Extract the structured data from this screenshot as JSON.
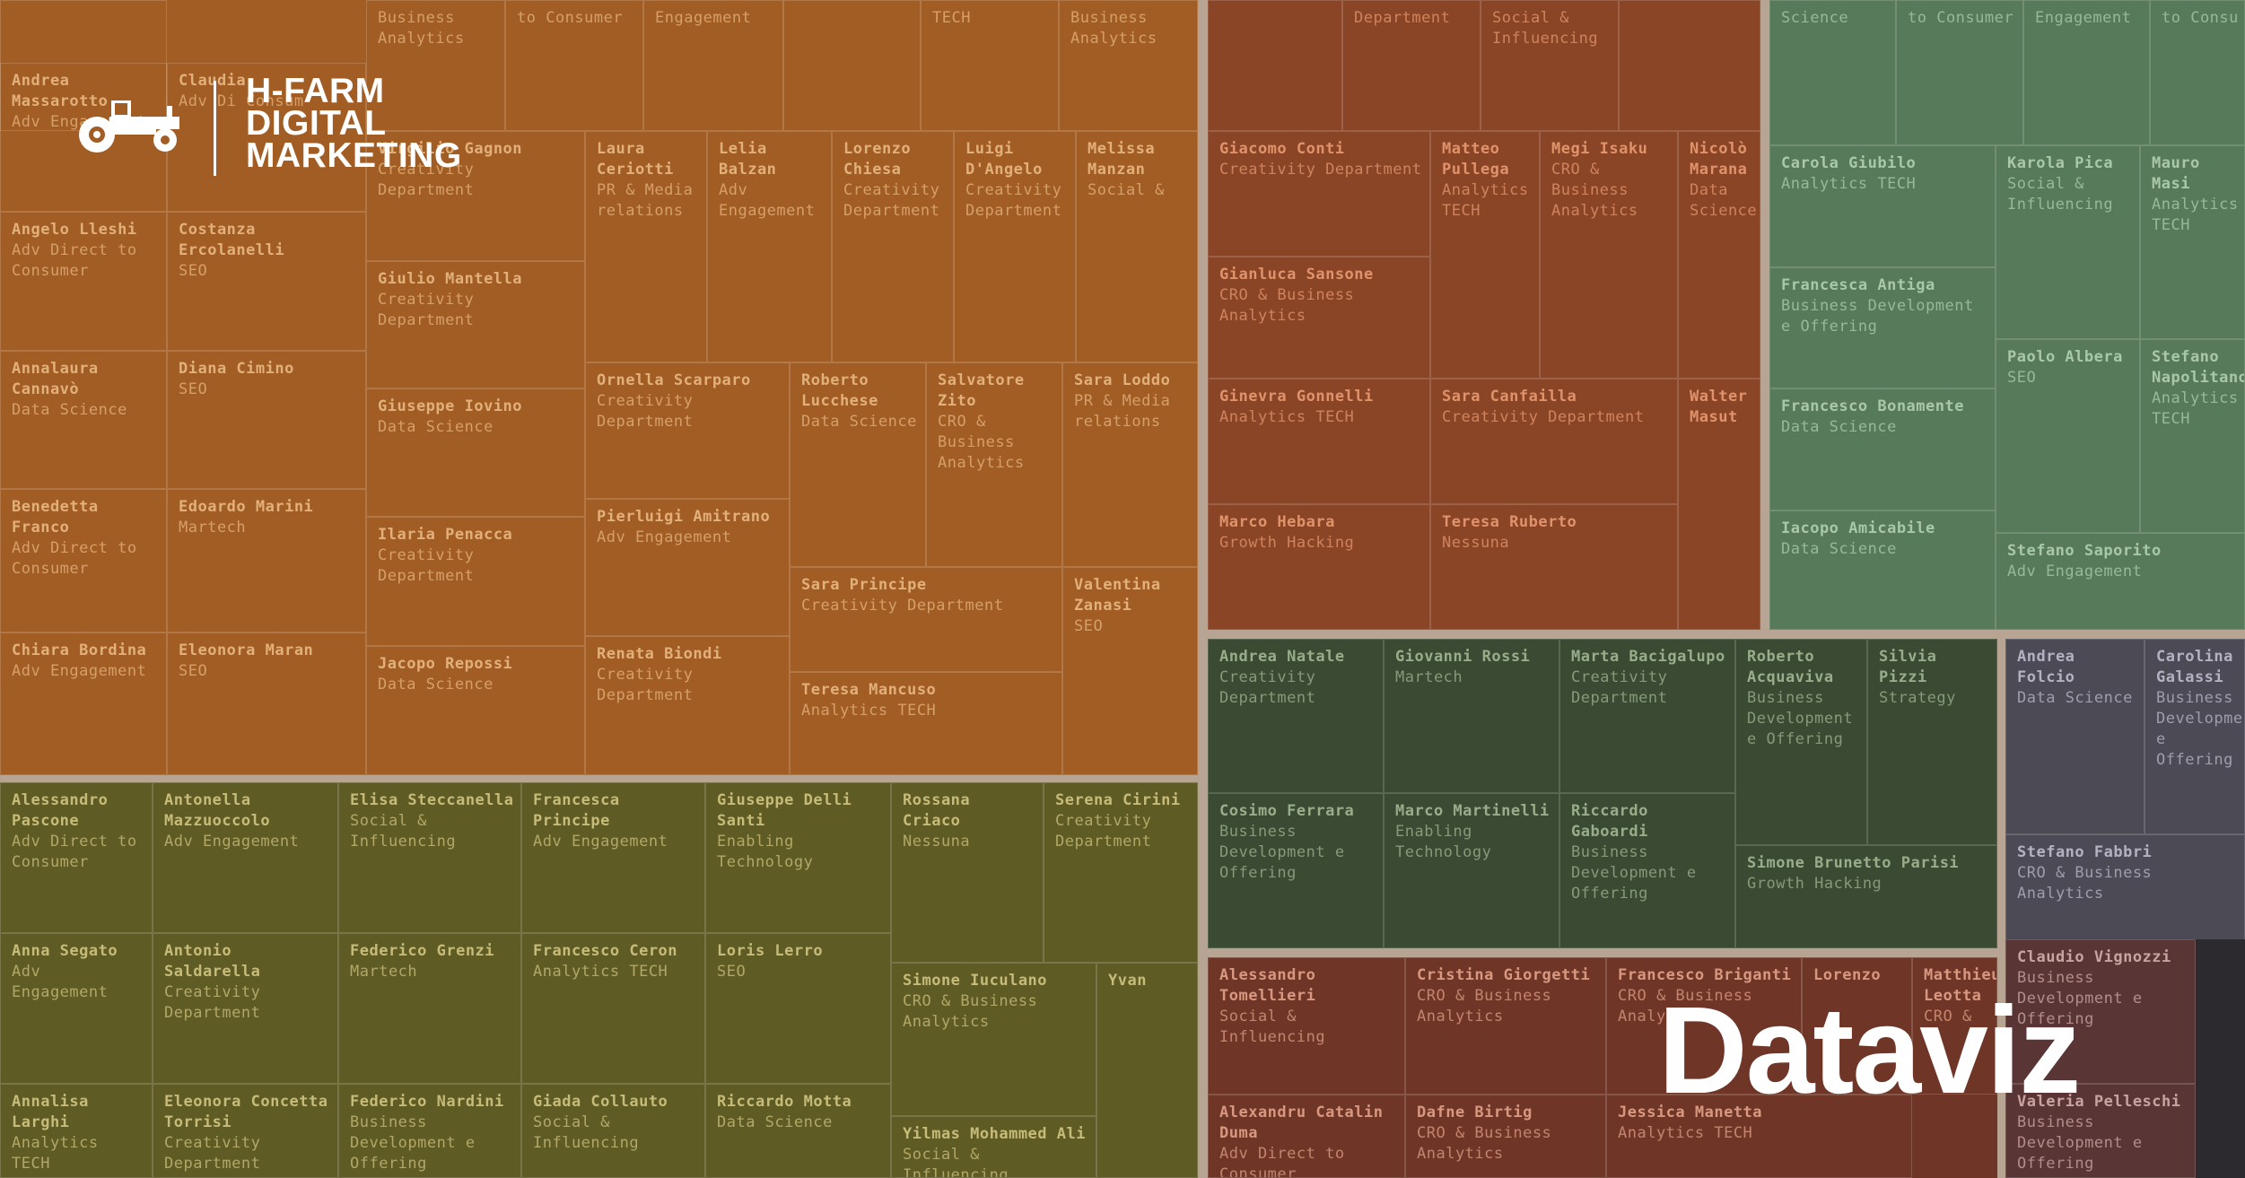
{
  "logo": {
    "line1": "H-FARM",
    "line2": "DIGITAL",
    "line3": "MARKETING"
  },
  "headline": "Dataviz",
  "colors": {
    "orange": "#a25d24",
    "olive": "#5f5b25",
    "rust": "#8a4527",
    "green": "#577a5a",
    "darkgreen": "#3a4a33",
    "maroon": "#6f3627",
    "slate": "#4c4a55",
    "darkred": "#5a3535",
    "divider": "#b8a492"
  },
  "chart_data": {
    "type": "treemap",
    "groups": [
      {
        "id": "orange",
        "color": "orange",
        "ink": "#e2b07a",
        "cells": [
          {
            "name": "",
            "dept": ""
          },
          {
            "name": "",
            "dept": "Business Analytics"
          },
          {
            "name": "",
            "dept": "to Consumer"
          },
          {
            "name": "",
            "dept": "Engagement"
          },
          {
            "name": "",
            "dept": ""
          },
          {
            "name": "",
            "dept": "TECH"
          },
          {
            "name": "",
            "dept": "Business Analytics"
          },
          {
            "name": "Andrea Massarotto",
            "dept": "Adv Engagement"
          },
          {
            "name": "Claudia",
            "dept": "Adv Di Consum"
          },
          {
            "name": "Angelo Lleshi",
            "dept": "Adv Direct to Consumer"
          },
          {
            "name": "Costanza Ercolanelli",
            "dept": "SEO"
          },
          {
            "name": "Annalaura Cannavò",
            "dept": "Data Science"
          },
          {
            "name": "Diana Cimino",
            "dept": "SEO"
          },
          {
            "name": "Benedetta Franco",
            "dept": "Adv Direct to Consumer"
          },
          {
            "name": "Edoardo Marini",
            "dept": "Martech"
          },
          {
            "name": "Chiara Bordina",
            "dept": "Adv Engagement"
          },
          {
            "name": "Eleonora Maran",
            "dept": "SEO"
          },
          {
            "name": "Virgilio Gagnon",
            "dept": "Creativity Department"
          },
          {
            "name": "Giulio Mantella",
            "dept": "Creativity Department"
          },
          {
            "name": "Giuseppe Iovino",
            "dept": "Data Science"
          },
          {
            "name": "Ilaria Penacca",
            "dept": "Creativity Department"
          },
          {
            "name": "Jacopo Repossi",
            "dept": "Data Science"
          },
          {
            "name": "Laura Ceriotti",
            "dept": "PR & Media relations"
          },
          {
            "name": "Lelia Balzan",
            "dept": "Adv Engagement"
          },
          {
            "name": "Lorenzo Chiesa",
            "dept": "Creativity Department"
          },
          {
            "name": "Luigi D'Angelo",
            "dept": "Creativity Department"
          },
          {
            "name": "Melissa Manzan",
            "dept": "Social &"
          },
          {
            "name": "Ornella Scarparo",
            "dept": "Creativity Department"
          },
          {
            "name": "Roberto Lucchese",
            "dept": "Data Science"
          },
          {
            "name": "Salvatore Zito",
            "dept": "CRO & Business Analytics"
          },
          {
            "name": "Sara Loddo",
            "dept": "PR & Media relations"
          },
          {
            "name": "Pierluigi Amitrano",
            "dept": "Adv Engagement"
          },
          {
            "name": "Renata Biondi",
            "dept": "Creativity Department"
          },
          {
            "name": "Sara Principe",
            "dept": "Creativity Department"
          },
          {
            "name": "Valentina Zanasi",
            "dept": "SEO"
          },
          {
            "name": "Teresa Mancuso",
            "dept": "Analytics TECH"
          }
        ]
      },
      {
        "id": "olive",
        "color": "olive",
        "ink": "#c6bb78",
        "cells": [
          {
            "name": "Alessandro Pascone",
            "dept": "Adv Direct to Consumer"
          },
          {
            "name": "Antonella Mazzuoccolo",
            "dept": "Adv Engagement"
          },
          {
            "name": "Elisa Steccanella",
            "dept": "Social & Influencing"
          },
          {
            "name": "Francesca Principe",
            "dept": "Adv Engagement"
          },
          {
            "name": "Giuseppe Delli Santi",
            "dept": "Enabling Technology"
          },
          {
            "name": "Rossana Criaco",
            "dept": "Nessuna"
          },
          {
            "name": "Serena Cirini",
            "dept": "Creativity Department"
          },
          {
            "name": "Anna Segato",
            "dept": "Adv Engagement"
          },
          {
            "name": "Antonio Saldarella",
            "dept": "Creativity Department"
          },
          {
            "name": "Federico Grenzi",
            "dept": "Martech"
          },
          {
            "name": "Francesco Ceron",
            "dept": "Analytics TECH"
          },
          {
            "name": "Loris Lerro",
            "dept": "SEO"
          },
          {
            "name": "Simone Iuculano",
            "dept": "CRO & Business Analytics"
          },
          {
            "name": "Yvan",
            "dept": ""
          },
          {
            "name": "Annalisa Larghi",
            "dept": "Analytics TECH"
          },
          {
            "name": "Eleonora Concetta Torrisi",
            "dept": "Creativity Department"
          },
          {
            "name": "Federico Nardini",
            "dept": "Business Development e Offering"
          },
          {
            "name": "Giada Collauto",
            "dept": "Social & Influencing"
          },
          {
            "name": "Riccardo Motta",
            "dept": "Data Science"
          },
          {
            "name": "Yilmas Mohammed Ali",
            "dept": "Social & Influencing"
          }
        ]
      },
      {
        "id": "rust",
        "color": "rust",
        "ink": "#e0936a",
        "cells": [
          {
            "name": "",
            "dept": ""
          },
          {
            "name": "",
            "dept": "Department"
          },
          {
            "name": "",
            "dept": "Social & Influencing"
          },
          {
            "name": "",
            "dept": ""
          },
          {
            "name": "Giacomo Conti",
            "dept": "Creativity Department"
          },
          {
            "name": "Matteo Pullega",
            "dept": "Analytics TECH"
          },
          {
            "name": "Megi Isaku",
            "dept": "CRO & Business Analytics"
          },
          {
            "name": "Nicolò Marana",
            "dept": "Data Science"
          },
          {
            "name": "Gianluca Sansone",
            "dept": "CRO & Business Analytics"
          },
          {
            "name": "Ginevra Gonnelli",
            "dept": "Analytics TECH"
          },
          {
            "name": "Sara Canfailla",
            "dept": "Creativity Department"
          },
          {
            "name": "Walter Masut",
            "dept": ""
          },
          {
            "name": "Marco Hebara",
            "dept": "Growth Hacking"
          },
          {
            "name": "Teresa Ruberto",
            "dept": "Nessuna"
          }
        ]
      },
      {
        "id": "green",
        "color": "green",
        "ink": "#a9c8a8",
        "cells": [
          {
            "name": "",
            "dept": "Science"
          },
          {
            "name": "",
            "dept": "to Consumer"
          },
          {
            "name": "",
            "dept": "Engagement"
          },
          {
            "name": "",
            "dept": "to Consu"
          },
          {
            "name": "Carola Giubilo",
            "dept": "Analytics TECH"
          },
          {
            "name": "Karola Pica",
            "dept": "Social & Influencing"
          },
          {
            "name": "Mauro Masi",
            "dept": "Analytics TECH"
          },
          {
            "name": "Francesca Antiga",
            "dept": "Business Development e Offering"
          },
          {
            "name": "Paolo Albera",
            "dept": "SEO"
          },
          {
            "name": "Stefano Napolitano",
            "dept": "Analytics TECH"
          },
          {
            "name": "Francesco Bonamente",
            "dept": "Data Science"
          },
          {
            "name": "Iacopo Amicabile",
            "dept": "Data Science"
          },
          {
            "name": "Stefano Saporito",
            "dept": "Adv Engagement"
          }
        ]
      },
      {
        "id": "darkgreen",
        "color": "darkgreen",
        "ink": "#99ad8a",
        "cells": [
          {
            "name": "Andrea Natale",
            "dept": "Creativity Department"
          },
          {
            "name": "Giovanni Rossi",
            "dept": "Martech"
          },
          {
            "name": "Marta Bacigalupo",
            "dept": "Creativity Department"
          },
          {
            "name": "Roberto Acquaviva",
            "dept": "Business Development e Offering"
          },
          {
            "name": "Silvia Pizzi",
            "dept": "Strategy"
          },
          {
            "name": "Cosimo Ferrara",
            "dept": "Business Development e Offering"
          },
          {
            "name": "Marco Martinelli",
            "dept": "Enabling Technology"
          },
          {
            "name": "Riccardo Gaboardi",
            "dept": "Business Development e Offering"
          },
          {
            "name": "Simone Brunetto Parisi",
            "dept": "Growth Hacking"
          }
        ]
      },
      {
        "id": "slate",
        "color": "slate",
        "ink": "#b5b1c3",
        "cells": [
          {
            "name": "Andrea Folcio",
            "dept": "Data Science"
          },
          {
            "name": "Carolina Galassi",
            "dept": "Business Development e Offering"
          },
          {
            "name": "Stefano Fabbri",
            "dept": "CRO & Business Analytics"
          }
        ]
      },
      {
        "id": "maroon",
        "color": "maroon",
        "ink": "#d89880",
        "cells": [
          {
            "name": "Alessandro Tomellieri",
            "dept": "Social & Influencing"
          },
          {
            "name": "Cristina Giorgetti",
            "dept": "CRO & Business Analytics"
          },
          {
            "name": "Francesco Briganti",
            "dept": "CRO & Business Analytics"
          },
          {
            "name": "Lorenzo",
            "dept": ""
          },
          {
            "name": "Matthieu Leotta",
            "dept": "CRO &"
          },
          {
            "name": "Alexandru Catalin Duma",
            "dept": "Adv Direct to Consumer"
          },
          {
            "name": "Dafne Birtig",
            "dept": "CRO & Business Analytics"
          },
          {
            "name": "Jessica Manetta",
            "dept": "Analytics TECH"
          }
        ]
      },
      {
        "id": "darkred",
        "color": "darkred",
        "ink": "#c9a3a1",
        "cells": [
          {
            "name": "Claudio Vignozzi",
            "dept": "Business Development e Offering"
          },
          {
            "name": "Valeria Pelleschi",
            "dept": "Business Development e Offering"
          }
        ]
      }
    ]
  }
}
